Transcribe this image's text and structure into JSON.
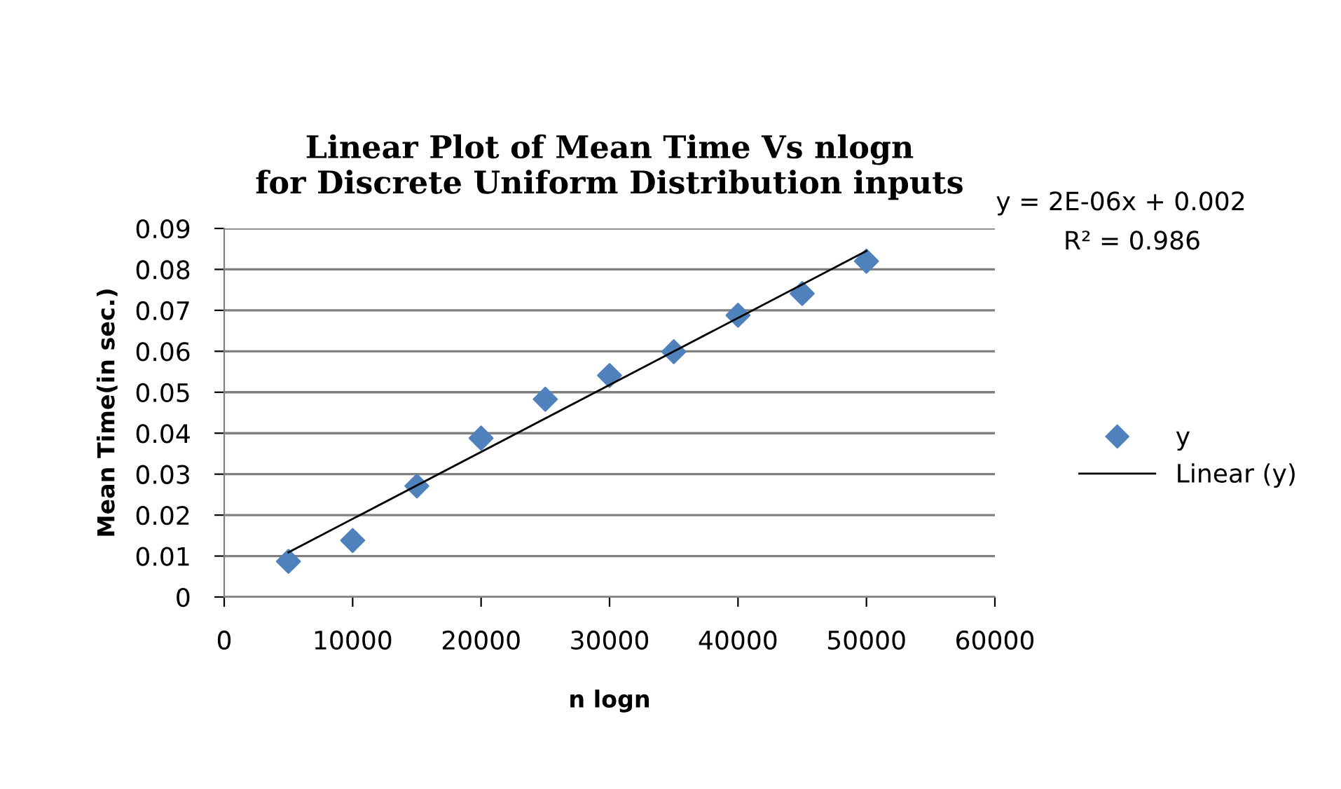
{
  "chart_data": {
    "type": "scatter",
    "title": "Linear Plot of Mean Time Vs nlogn\nfor Discrete Uniform Distribution inputs",
    "xlabel": "n logn",
    "ylabel": "Mean Time(in sec.)",
    "x": [
      5000,
      10000,
      15000,
      20000,
      25000,
      30000,
      35000,
      40000,
      45000,
      50000
    ],
    "series": [
      {
        "name": "y",
        "color": "#4f81bd",
        "marker": "diamond",
        "values": [
          0.0087,
          0.0138,
          0.0271,
          0.0388,
          0.0483,
          0.0541,
          0.0599,
          0.0688,
          0.0741,
          0.082
        ]
      },
      {
        "name": "Linear (y)",
        "color": "#000000",
        "type": "line",
        "marker": "none",
        "line_style": "solid",
        "x": [
          5000,
          50000
        ],
        "values": [
          0.0109,
          0.0845
        ]
      }
    ],
    "annotations": [
      "y = 2E-06x + 0.002",
      "R² = 0.986"
    ],
    "xlim": [
      0,
      60000
    ],
    "xticks": [
      0,
      10000,
      20000,
      30000,
      40000,
      50000,
      60000
    ],
    "ylim": [
      0,
      0.09
    ],
    "yticks": [
      0,
      0.01,
      0.02,
      0.03,
      0.04,
      0.05,
      0.06,
      0.07,
      0.08,
      0.09
    ],
    "grid": "y",
    "legend": "right"
  }
}
